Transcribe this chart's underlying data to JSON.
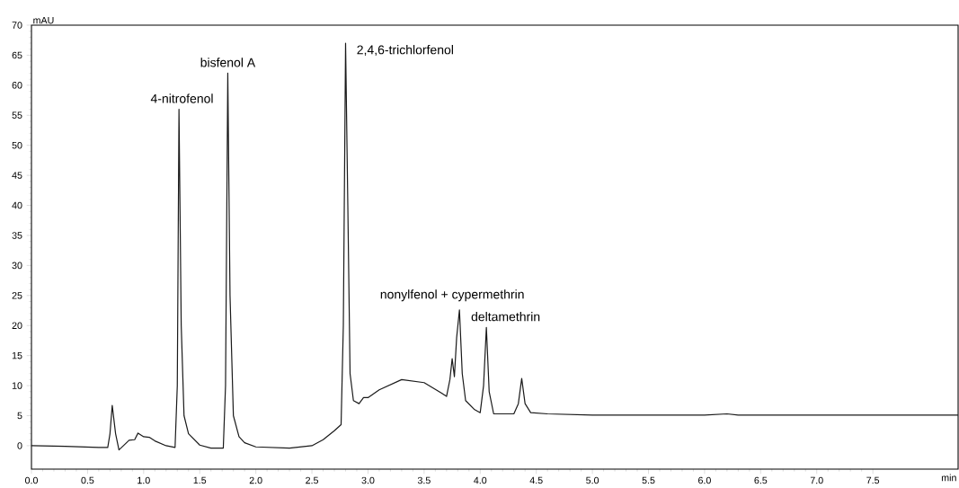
{
  "chart_data": {
    "type": "line",
    "xlabel": "min",
    "ylabel": "mAU",
    "x": [
      0,
      0.3,
      0.6,
      0.68,
      0.7,
      0.72,
      0.75,
      0.78,
      0.82,
      0.87,
      0.92,
      0.95,
      1.0,
      1.05,
      1.1,
      1.2,
      1.28,
      1.3,
      1.315,
      1.335,
      1.36,
      1.4,
      1.5,
      1.6,
      1.71,
      1.73,
      1.75,
      1.77,
      1.8,
      1.85,
      1.9,
      2.0,
      2.3,
      2.5,
      2.6,
      2.7,
      2.76,
      2.78,
      2.8,
      2.82,
      2.84,
      2.87,
      2.92,
      2.96,
      3.0,
      3.1,
      3.3,
      3.5,
      3.65,
      3.7,
      3.73,
      3.75,
      3.77,
      3.79,
      3.815,
      3.84,
      3.87,
      3.95,
      4.0,
      4.03,
      4.055,
      4.08,
      4.12,
      4.3,
      4.34,
      4.37,
      4.4,
      4.45,
      4.6,
      5.0,
      6.0,
      6.2,
      6.3,
      7.0,
      8.26
    ],
    "values": [
      0,
      -0.1,
      -0.3,
      -0.3,
      2,
      6.7,
      2,
      -0.7,
      0,
      0.9,
      1.0,
      2.1,
      1.5,
      1.4,
      0.8,
      0.0,
      -0.3,
      10,
      56,
      20,
      5,
      2,
      0.1,
      -0.4,
      -0.4,
      10,
      62,
      25,
      5,
      1.5,
      0.5,
      -0.2,
      -0.4,
      0.0,
      1.0,
      2.5,
      3.5,
      20,
      67,
      40,
      12,
      7.5,
      7.0,
      8.0,
      8.0,
      9.3,
      11.0,
      10.5,
      8.8,
      8.2,
      11,
      14.5,
      11.5,
      18,
      22.6,
      12,
      7.5,
      6.0,
      5.5,
      10,
      19.7,
      9,
      5.3,
      5.3,
      7,
      11.2,
      7,
      5.5,
      5.3,
      5.1,
      5.1,
      5.3,
      5.1,
      5.1,
      5.1
    ],
    "color": "#1a1a1a",
    "xlim": [
      0,
      8.26
    ],
    "ylim": [
      -3.9,
      70
    ],
    "xticks": [
      {
        "value": 0,
        "label": "0.0"
      },
      0.5,
      {
        "value": 1,
        "label": "1.0"
      },
      1.5,
      {
        "value": 2,
        "label": "2.0"
      },
      2.5,
      {
        "value": 3,
        "label": "3.0"
      },
      3.5,
      {
        "value": 4,
        "label": "4.0"
      },
      4.5,
      {
        "value": 5,
        "label": "5.0"
      },
      5.5,
      {
        "value": 6,
        "label": "6.0"
      },
      6.5,
      {
        "value": 7,
        "label": "7.0"
      },
      7.5
    ],
    "yticks": [
      0,
      5,
      10,
      15,
      20,
      25,
      30,
      35,
      40,
      45,
      50,
      55,
      60,
      65,
      70
    ],
    "annotations": [
      {
        "text": "4-nitrofenol",
        "x": 1.315,
        "y": 56
      },
      {
        "text": "bisfenol A",
        "x": 1.75,
        "y": 62
      },
      {
        "text": "2,4,6-trichlorfenol",
        "x": 2.8,
        "y": 67
      },
      {
        "text": "nonylfenol + cypermethrin",
        "x": 3.815,
        "y": 22.6
      },
      {
        "text": "deltamethrin",
        "x": 4.055,
        "y": 19.7
      }
    ]
  }
}
